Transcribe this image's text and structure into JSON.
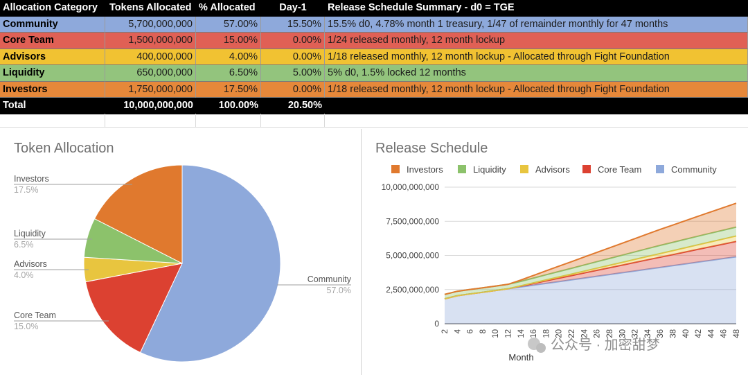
{
  "table": {
    "headers": [
      "Allocation Category",
      "Tokens Allocated",
      "% Allocated",
      "Day-1",
      "Release Schedule Summary - d0 = TGE"
    ],
    "rows": [
      {
        "category": "Community",
        "tokens": "5,700,000,000",
        "pct": "57.00%",
        "day1": "15.50%",
        "summary": "15.5% d0, 4.78% month 1 treasury, 1/47 of remainder monthly for 47 months",
        "color": "#8ea9db"
      },
      {
        "category": "Core Team",
        "tokens": "1,500,000,000",
        "pct": "15.00%",
        "day1": "0.00%",
        "summary": "1/24 released monthly, 12 month lockup",
        "color": "#e06055"
      },
      {
        "category": "Advisors",
        "tokens": "400,000,000",
        "pct": "4.00%",
        "day1": "0.00%",
        "summary": "1/18 released monthly, 12 month lockup -  Allocated through Fight Foundation",
        "color": "#f1c232"
      },
      {
        "category": "Liquidity",
        "tokens": "650,000,000",
        "pct": "6.50%",
        "day1": "5.00%",
        "summary": "5% d0, 1.5% locked 12 months",
        "color": "#93c47d"
      },
      {
        "category": "Investors",
        "tokens": "1,750,000,000",
        "pct": "17.50%",
        "day1": "0.00%",
        "summary": "1/18 released monthly, 12 month lockup - Allocated through Fight Foundation",
        "color": "#e6883a"
      }
    ],
    "total": {
      "label": "Total",
      "tokens": "10,000,000,000",
      "pct": "100.00%",
      "day1": "20.50%"
    }
  },
  "chart_data": [
    {
      "type": "pie",
      "title": "Token Allocation",
      "slices": [
        {
          "name": "Community",
          "value": 57.0,
          "label": "57.0%",
          "color": "#8ea9db"
        },
        {
          "name": "Core Team",
          "value": 15.0,
          "label": "15.0%",
          "color": "#dc4131"
        },
        {
          "name": "Advisors",
          "value": 4.0,
          "label": "4.0%",
          "color": "#e8c53f"
        },
        {
          "name": "Liquidity",
          "value": 6.5,
          "label": "6.5%",
          "color": "#8cc26b"
        },
        {
          "name": "Investors",
          "value": 17.5,
          "label": "17.5%",
          "color": "#e0792e"
        }
      ]
    },
    {
      "type": "area",
      "stacked": true,
      "title": "Release Schedule",
      "xlabel": "Month",
      "ylabel": "",
      "ylim": [
        0,
        10000000000
      ],
      "yticks": [
        0,
        2500000000,
        5000000000,
        7500000000,
        10000000000
      ],
      "ytick_labels": [
        "0",
        "2,500,000,000",
        "5,000,000,000",
        "7,500,000,000",
        "10,000,000,000"
      ],
      "x": [
        2,
        4,
        6,
        8,
        10,
        12,
        14,
        16,
        18,
        20,
        22,
        24,
        26,
        28,
        30,
        32,
        34,
        36,
        38,
        40,
        42,
        44,
        46,
        48
      ],
      "legend_position": "top",
      "series": [
        {
          "name": "Community",
          "color": "#8ea9db",
          "values": [
            1820000000,
            2050000000,
            2180000000,
            2300000000,
            2430000000,
            2560000000,
            2690000000,
            2820000000,
            2950000000,
            3080000000,
            3210000000,
            3340000000,
            3470000000,
            3600000000,
            3730000000,
            3860000000,
            3990000000,
            4120000000,
            4250000000,
            4380000000,
            4510000000,
            4640000000,
            4770000000,
            4900000000
          ]
        },
        {
          "name": "Core Team",
          "color": "#dc4131",
          "values": [
            0,
            0,
            0,
            0,
            0,
            0,
            60000000,
            125000000,
            190000000,
            250000000,
            310000000,
            375000000,
            440000000,
            500000000,
            560000000,
            625000000,
            690000000,
            750000000,
            810000000,
            875000000,
            940000000,
            1000000000,
            1060000000,
            1125000000
          ]
        },
        {
          "name": "Advisors",
          "color": "#e8c53f",
          "values": [
            0,
            0,
            0,
            0,
            0,
            0,
            22000000,
            44000000,
            66000000,
            89000000,
            111000000,
            133000000,
            155000000,
            178000000,
            200000000,
            222000000,
            244000000,
            267000000,
            289000000,
            311000000,
            333000000,
            355000000,
            378000000,
            400000000
          ]
        },
        {
          "name": "Liquidity",
          "color": "#8cc26b",
          "values": [
            325000000,
            325000000,
            325000000,
            325000000,
            325000000,
            325000000,
            325000000,
            350000000,
            375000000,
            400000000,
            425000000,
            450000000,
            475000000,
            500000000,
            525000000,
            550000000,
            575000000,
            600000000,
            610000000,
            620000000,
            630000000,
            640000000,
            645000000,
            650000000
          ]
        },
        {
          "name": "Investors",
          "color": "#e0792e",
          "values": [
            0,
            0,
            0,
            0,
            0,
            0,
            97000000,
            194000000,
            292000000,
            389000000,
            486000000,
            583000000,
            681000000,
            778000000,
            875000000,
            972000000,
            1069000000,
            1167000000,
            1264000000,
            1361000000,
            1458000000,
            1556000000,
            1653000000,
            1750000000
          ]
        }
      ],
      "legend_order": [
        "Investors",
        "Liquidity",
        "Advisors",
        "Core Team",
        "Community"
      ]
    }
  ],
  "watermark": "公众号 · 加密甜梦"
}
